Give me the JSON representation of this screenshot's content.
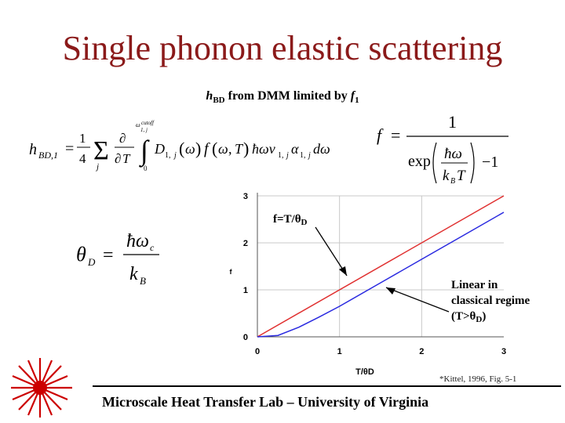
{
  "slide": {
    "title": "Single phonon elastic scattering",
    "subtitle_main": "h",
    "subtitle_sub": "BD",
    "subtitle_rest": " from DMM limited by ",
    "subtitle_f": "f",
    "subtitle_f_sub": "1",
    "footer": "Microscale Heat Transfer Lab – University of Virginia",
    "citation": "*Kittel, 1996, Fig. 5-1",
    "annotation_left": "f=T/θD",
    "annotation_right_line1": "Linear in",
    "annotation_right_line2": "classical regime",
    "annotation_right_line3": "(T>θD)",
    "colors": {
      "title": "#8b1a1a",
      "red_series": "#e03030",
      "blue_series": "#2a2ae0"
    }
  },
  "chart_data": {
    "type": "line",
    "xlabel": "T/θD",
    "ylabel": "f",
    "xlim": [
      0,
      3
    ],
    "ylim": [
      0,
      3
    ],
    "xticks": [
      "0",
      "1",
      "2",
      "3"
    ],
    "yticks": [
      "0",
      "1",
      "2",
      "3"
    ],
    "series": [
      {
        "color": "#e03030",
        "x": [
          0,
          3
        ],
        "y": [
          0,
          3
        ]
      },
      {
        "color": "#2a2ae0",
        "x": [
          0,
          0.25,
          0.5,
          0.75,
          1.0,
          1.5,
          2.0,
          2.5,
          3.0
        ],
        "y": [
          0,
          0.03,
          0.2,
          0.42,
          0.65,
          1.15,
          1.65,
          2.15,
          2.65
        ]
      }
    ]
  }
}
